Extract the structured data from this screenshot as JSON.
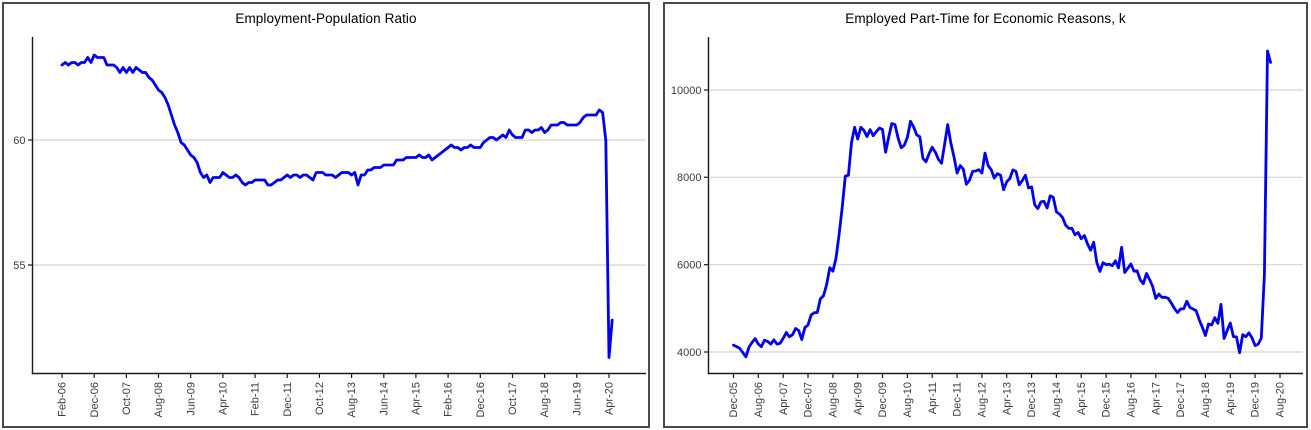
{
  "line_color": "#0000ee",
  "chart_data": [
    {
      "type": "line",
      "title": "Employment-Population Ratio",
      "x_frequency": "monthly",
      "x_start": "Feb-06",
      "x_end": "May-20",
      "x_tick_interval_months": 10,
      "x_tick_labels": [
        "Feb-06",
        "Dec-06",
        "Oct-07",
        "Aug-08",
        "Jun-09",
        "Apr-10",
        "Feb-11",
        "Dec-11",
        "Oct-12",
        "Aug-13",
        "Jun-14",
        "Apr-15",
        "Feb-16",
        "Dec-16",
        "Oct-17",
        "Aug-18",
        "Jun-19",
        "Apr-20"
      ],
      "y_ticks": [
        55,
        60
      ],
      "y_tick_labels": [
        "55",
        "60"
      ],
      "ylim": [
        50.7,
        64.1
      ],
      "grid": true,
      "legend": "none",
      "line_color": "#0000ee",
      "values": [
        63.0,
        63.1,
        63.0,
        63.1,
        63.1,
        63.0,
        63.1,
        63.1,
        63.3,
        63.1,
        63.4,
        63.3,
        63.3,
        63.3,
        63.0,
        63.0,
        63.0,
        62.9,
        62.7,
        62.9,
        62.7,
        62.9,
        62.7,
        62.9,
        62.8,
        62.7,
        62.7,
        62.5,
        62.4,
        62.2,
        62.0,
        61.9,
        61.7,
        61.4,
        61.0,
        60.6,
        60.3,
        59.9,
        59.8,
        59.6,
        59.4,
        59.3,
        59.1,
        58.7,
        58.5,
        58.6,
        58.3,
        58.5,
        58.5,
        58.5,
        58.7,
        58.6,
        58.5,
        58.5,
        58.6,
        58.5,
        58.3,
        58.2,
        58.3,
        58.3,
        58.4,
        58.4,
        58.4,
        58.4,
        58.2,
        58.2,
        58.3,
        58.4,
        58.4,
        58.5,
        58.6,
        58.5,
        58.6,
        58.6,
        58.5,
        58.6,
        58.6,
        58.5,
        58.4,
        58.7,
        58.7,
        58.7,
        58.6,
        58.6,
        58.6,
        58.5,
        58.6,
        58.7,
        58.7,
        58.7,
        58.6,
        58.7,
        58.2,
        58.6,
        58.6,
        58.8,
        58.8,
        58.9,
        58.9,
        58.9,
        59.0,
        59.0,
        59.0,
        59.0,
        59.2,
        59.2,
        59.2,
        59.3,
        59.3,
        59.3,
        59.3,
        59.4,
        59.3,
        59.3,
        59.4,
        59.2,
        59.3,
        59.4,
        59.5,
        59.6,
        59.7,
        59.8,
        59.7,
        59.7,
        59.6,
        59.7,
        59.7,
        59.8,
        59.7,
        59.7,
        59.7,
        59.9,
        60.0,
        60.1,
        60.1,
        60.0,
        60.1,
        60.2,
        60.1,
        60.4,
        60.2,
        60.1,
        60.1,
        60.1,
        60.4,
        60.4,
        60.3,
        60.4,
        60.4,
        60.5,
        60.3,
        60.4,
        60.6,
        60.6,
        60.6,
        60.7,
        60.7,
        60.6,
        60.6,
        60.6,
        60.6,
        60.7,
        60.9,
        61.0,
        61.0,
        61.0,
        61.0,
        61.2,
        61.1,
        60.0,
        51.3,
        52.8
      ]
    },
    {
      "type": "line",
      "title": "Employed Part-Time for Economic Reasons, k",
      "x_frequency": "monthly",
      "x_start": "Dec-05",
      "x_end": "May-20",
      "x_tick_interval_months": 8,
      "x_tick_labels": [
        "Dec-05",
        "Aug-06",
        "Apr-07",
        "Dec-07",
        "Aug-08",
        "Apr-09",
        "Dec-09",
        "Aug-10",
        "Apr-11",
        "Dec-11",
        "Aug-12",
        "Apr-13",
        "Dec-13",
        "Aug-14",
        "Apr-15",
        "Dec-15",
        "Aug-16",
        "Apr-17",
        "Dec-17",
        "Aug-18",
        "Apr-19",
        "Dec-19",
        "Aug-20"
      ],
      "y_ticks": [
        4000,
        6000,
        8000,
        10000
      ],
      "y_tick_labels": [
        "4000",
        "6000",
        "8000",
        "10000"
      ],
      "ylim": [
        3500,
        11200
      ],
      "grid": true,
      "legend": "none",
      "line_color": "#0000ee",
      "values": [
        4155,
        4123,
        4084,
        3987,
        3888,
        4112,
        4219,
        4306,
        4184,
        4122,
        4270,
        4241,
        4181,
        4276,
        4180,
        4199,
        4313,
        4447,
        4349,
        4397,
        4539,
        4493,
        4287,
        4561,
        4618,
        4846,
        4901,
        4904,
        5220,
        5286,
        5540,
        5930,
        5851,
        6148,
        6690,
        7311,
        8029,
        8046,
        8796,
        9145,
        8878,
        9145,
        9075,
        8932,
        9091,
        8953,
        9044,
        9127,
        9098,
        8573,
        8924,
        9233,
        9205,
        8898,
        8676,
        8737,
        8917,
        9284,
        9154,
        8972,
        8931,
        8436,
        8356,
        8541,
        8689,
        8579,
        8413,
        8322,
        8757,
        9208,
        8790,
        8480,
        8098,
        8268,
        8186,
        7840,
        7934,
        8136,
        8145,
        8175,
        8100,
        8556,
        8270,
        8176,
        7982,
        8084,
        8052,
        7716,
        7900,
        7971,
        8170,
        8135,
        7830,
        7926,
        8050,
        7758,
        7782,
        7372,
        7284,
        7438,
        7452,
        7298,
        7576,
        7541,
        7211,
        7158,
        7079,
        6901,
        6830,
        6833,
        6685,
        6736,
        6592,
        6665,
        6475,
        6332,
        6515,
        6049,
        5845,
        6044,
        6000,
        6013,
        5975,
        6086,
        5926,
        6398,
        5820,
        5917,
        6016,
        5851,
        5860,
        5654,
        5563,
        5801,
        5660,
        5497,
        5226,
        5326,
        5250,
        5255,
        5229,
        5123,
        4999,
        4903,
        4987,
        4989,
        5160,
        5022,
        4985,
        4948,
        4743,
        4567,
        4379,
        4642,
        4621,
        4785,
        4657,
        5090,
        4310,
        4495,
        4665,
        4353,
        4346,
        3984,
        4397,
        4350,
        4438,
        4322,
        4148,
        4182,
        4318,
        5767,
        10893,
        10633
      ]
    }
  ]
}
